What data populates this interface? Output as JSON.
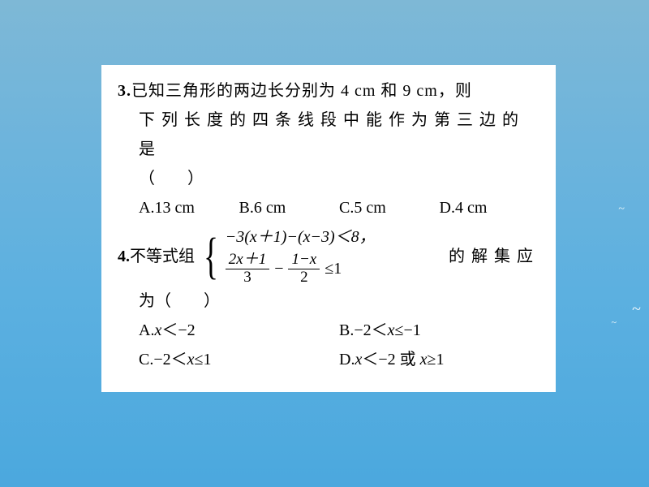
{
  "background": {
    "gradient_colors": [
      "#7eb8d6",
      "#6db4dc",
      "#5cb0e0",
      "#4ba8de"
    ],
    "birds_color": "#ffffff"
  },
  "card": {
    "bg_color": "#ffffff",
    "text_color": "#000000",
    "font_size_pt": 15,
    "font_family": "SimSun"
  },
  "q3": {
    "num": "3.",
    "stem_line1": "已知三角形的两边长分别为 4 cm 和 9 cm，则",
    "stem_line2": "下列长度的四条线段中能作为第三边的是",
    "paren": "（　　）",
    "options": {
      "A": "A.13 cm",
      "B": "B.6 cm",
      "C": "C.5 cm",
      "D": "D.4 cm"
    }
  },
  "q4": {
    "num": "4.",
    "label": "不等式组",
    "system": {
      "row1": "−3(x＋1)−(x−3)＜8，",
      "row2_frac1_num": "2x＋1",
      "row2_frac1_den": "3",
      "row2_minus": "−",
      "row2_frac2_num": "1−x",
      "row2_frac2_den": "2",
      "row2_tail": "≤1"
    },
    "tail": "的解集应",
    "wei": "为（　　）",
    "options": {
      "A": "A.x＜−2",
      "B": "B.−2＜x≤−1",
      "C": "C.−2＜x≤1",
      "D": "D.x＜−2 或 x≥1"
    }
  }
}
